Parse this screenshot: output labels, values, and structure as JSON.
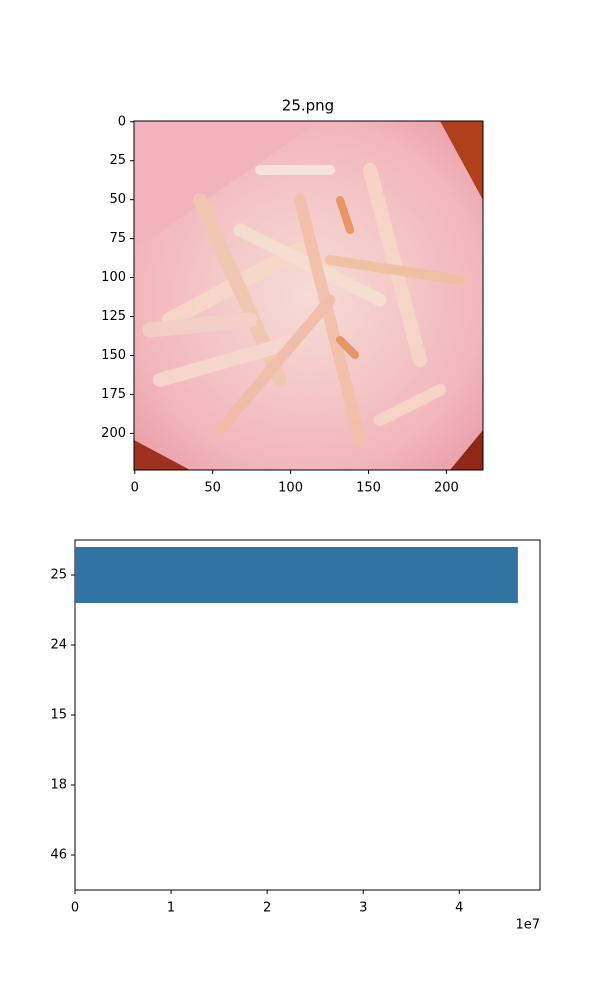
{
  "chart_data": [
    {
      "type": "image",
      "title": "25.png",
      "xlim": [
        -0.5,
        223.5
      ],
      "xticks": [
        0,
        50,
        100,
        150,
        200
      ],
      "ylim": [
        223.5,
        -0.5
      ],
      "yticks": [
        0,
        25,
        50,
        75,
        100,
        125,
        150,
        175,
        200
      ]
    },
    {
      "type": "barh",
      "categories": [
        "25",
        "24",
        "15",
        "18",
        "46"
      ],
      "values": [
        46100000,
        0,
        0,
        0,
        0
      ],
      "color": "#3274a1",
      "xlim": [
        0,
        48400000
      ],
      "xticks": [
        0,
        {
          "value": 10000000,
          "label": "1"
        },
        {
          "value": 20000000,
          "label": "2"
        },
        {
          "value": 30000000,
          "label": "3"
        },
        {
          "value": 40000000,
          "label": "4"
        }
      ],
      "x_offset_label": "1e7"
    }
  ]
}
